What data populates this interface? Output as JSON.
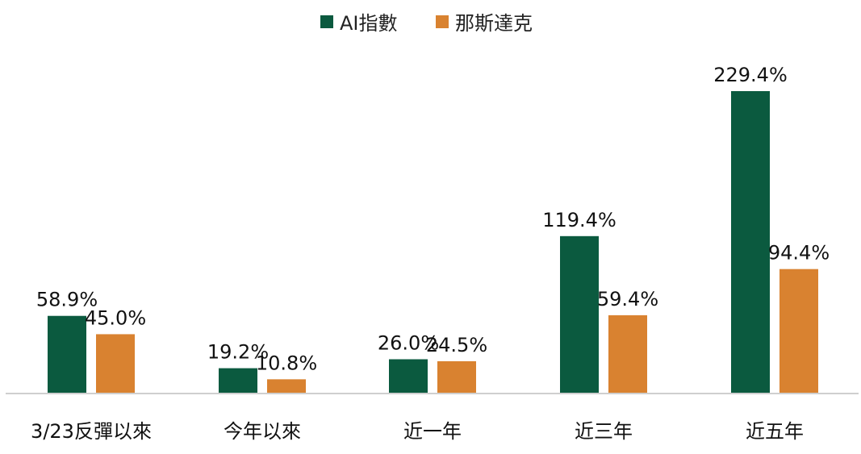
{
  "chart_data": {
    "type": "bar",
    "title": "",
    "xlabel": "",
    "ylabel": "",
    "ylim": [
      0,
      245
    ],
    "grid": false,
    "legend": {
      "position": "top-center"
    },
    "categories": [
      "3/23反彈以來",
      "今年以來",
      "近一年",
      "近三年",
      "近五年"
    ],
    "series": [
      {
        "name": "AI指數",
        "color": "#0b5a3f",
        "values": [
          58.9,
          19.2,
          26.0,
          119.4,
          229.4
        ],
        "labels": [
          "58.9%",
          "19.2%",
          "26.0%",
          "119.4%",
          "229.4%"
        ]
      },
      {
        "name": "那斯達克",
        "color": "#d98230",
        "values": [
          45.0,
          10.8,
          24.5,
          59.4,
          94.4
        ],
        "labels": [
          "45.0%",
          "10.8%",
          "24.5%",
          "59.4%",
          "94.4%"
        ]
      }
    ]
  }
}
